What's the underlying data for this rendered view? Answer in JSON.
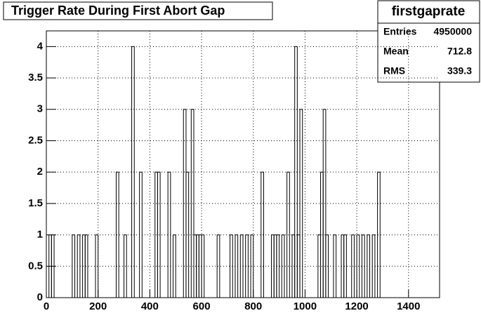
{
  "chart_data": {
    "type": "histogram",
    "title": "Trigger Rate During First Abort Gap",
    "bins": [
      0,
      10,
      20,
      30,
      40,
      50,
      60,
      70,
      80,
      90,
      100,
      110,
      120,
      130,
      140,
      150,
      160,
      170,
      180,
      190,
      200,
      210,
      220,
      230,
      240,
      250,
      260,
      270,
      280,
      290,
      300,
      310,
      320,
      330,
      340,
      350,
      360,
      370,
      380,
      390,
      400,
      410,
      420,
      430,
      440,
      450,
      460,
      470,
      480,
      490,
      500,
      510,
      520,
      530,
      540,
      550,
      560,
      570,
      580,
      590,
      600,
      610,
      620,
      630,
      640,
      650,
      660,
      670,
      680,
      690,
      700,
      710,
      720,
      730,
      740,
      750,
      760,
      770,
      780,
      790,
      800,
      810,
      820,
      830,
      840,
      850,
      860,
      870,
      880,
      890,
      900,
      910,
      920,
      930,
      940,
      950,
      960,
      970,
      980,
      990,
      1000,
      1010,
      1020,
      1030,
      1040,
      1050,
      1060,
      1070,
      1080,
      1090,
      1100,
      1110,
      1120,
      1130,
      1140,
      1150,
      1160,
      1170,
      1180,
      1190,
      1200,
      1210,
      1220,
      1230,
      1240,
      1250,
      1260,
      1270,
      1280,
      1290,
      1300,
      1310,
      1320,
      1330,
      1340,
      1350,
      1360,
      1370,
      1380,
      1390,
      1400,
      1410,
      1420,
      1430,
      1440,
      1450,
      1460,
      1470,
      1480,
      1490,
      1500,
      1510,
      1520
    ],
    "counts": [
      0,
      1,
      1,
      0,
      0,
      0,
      0,
      0,
      0,
      0,
      1,
      0,
      1,
      0,
      1,
      1,
      0,
      0,
      0,
      1,
      0,
      0,
      0,
      0,
      0,
      0,
      0,
      2,
      0,
      0,
      1,
      0,
      0,
      4,
      0,
      0,
      2,
      0,
      0,
      0,
      0,
      0,
      2,
      2,
      0,
      0,
      0,
      2,
      0,
      1,
      0,
      0,
      0,
      3,
      2,
      0,
      3,
      1,
      1,
      1,
      1,
      0,
      0,
      0,
      0,
      0,
      1,
      0,
      0,
      0,
      0,
      1,
      0,
      1,
      0,
      1,
      0,
      1,
      0,
      1,
      0,
      0,
      0,
      2,
      0,
      0,
      0,
      1,
      1,
      1,
      0,
      1,
      0,
      2,
      0,
      1,
      4,
      1,
      3,
      0,
      0,
      0,
      0,
      0,
      0,
      1,
      2,
      3,
      1,
      0,
      0,
      1,
      0,
      0,
      1,
      1,
      0,
      0,
      1,
      0,
      1,
      0,
      1,
      0,
      1,
      0,
      1,
      0,
      2,
      0,
      0,
      0,
      0,
      0,
      0,
      0,
      0,
      0,
      0,
      0,
      0,
      0,
      0,
      0,
      0,
      0,
      0,
      0,
      0,
      0,
      0,
      0
    ],
    "color": "#000000",
    "xlim": [
      0,
      1520
    ],
    "xticks": [
      0,
      200,
      400,
      600,
      800,
      1000,
      1200,
      1400
    ],
    "ylim": [
      0,
      4.25
    ],
    "yticks": [
      0,
      0.5,
      1,
      1.5,
      2,
      2.5,
      3,
      3.5,
      4
    ],
    "grid": true,
    "stats": {
      "name": "firstgaprate",
      "labels": [
        "Entries",
        "Mean",
        "RMS"
      ],
      "values": [
        4950000,
        712.8,
        339.3
      ]
    }
  }
}
